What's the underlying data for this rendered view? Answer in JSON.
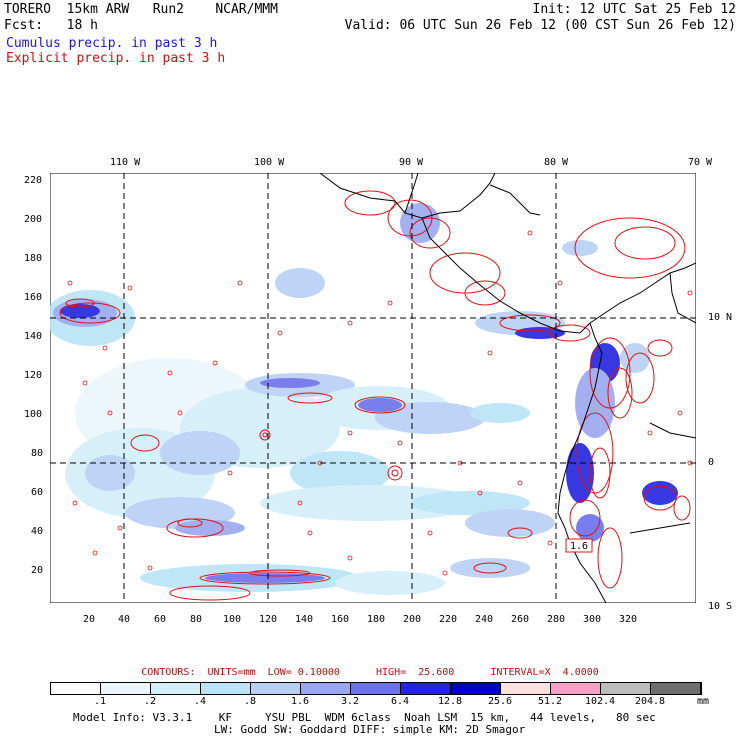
{
  "header": {
    "line1_left": "TORERO  15km ARW   Run2    NCAR/MMM",
    "line1_right": "Init: 12 UTC Sat 25 Feb 12",
    "line2_left": "Fcst:   18 h",
    "line2_right": "Valid: 06 UTC Sun 26 Feb 12 (00 CST Sun 26 Feb 12)",
    "cumulus_label": "Cumulus precip. in past 3 h",
    "explicit_label": "Explicit precip. in past 3 h"
  },
  "map": {
    "lon_labels": [
      "110 W",
      "100 W",
      "90 W",
      "80 W",
      "70 W"
    ],
    "lat_labels": [
      "10 N",
      "0",
      "10 S"
    ],
    "y_ticks": [
      "220",
      "200",
      "180",
      "160",
      "140",
      "120",
      "100",
      "80",
      "60",
      "40",
      "20"
    ],
    "x_ticks": [
      "20",
      "40",
      "60",
      "80",
      "100",
      "120",
      "140",
      "160",
      "180",
      "200",
      "220",
      "240",
      "260",
      "280",
      "300",
      "320"
    ],
    "box_label": "1.6"
  },
  "contours": {
    "text": "CONTOURS:  UNITS=mm  LOW= 0.10000      HIGH=  25.600      INTERVAL=X  4.0000"
  },
  "colorbar": {
    "labels": [
      ".1",
      ".2",
      ".4",
      ".8",
      "1.6",
      "3.2",
      "6.4",
      "12.8",
      "25.6",
      "51.2",
      "102.4",
      "204.8"
    ],
    "unit": "mm",
    "colors": [
      "#ffffff",
      "#eaf6fb",
      "#d2eef8",
      "#b9e4f7",
      "#b8cff4",
      "#9aa7f0",
      "#6c71ec",
      "#2323e0",
      "#0000c8",
      "#fde0e0",
      "#f6a0c8",
      "#bdbdbd",
      "#6e6e6e",
      "#222222",
      "#d4aaf2"
    ]
  },
  "footer": {
    "line1": "Model Info: V3.3.1    KF     YSU PBL  WDM 6class  Noah LSM  15 km,   44 levels,   80 sec",
    "line2": "LW: Godd SW: Goddard DIFF: simple KM: 2D Smagor"
  }
}
